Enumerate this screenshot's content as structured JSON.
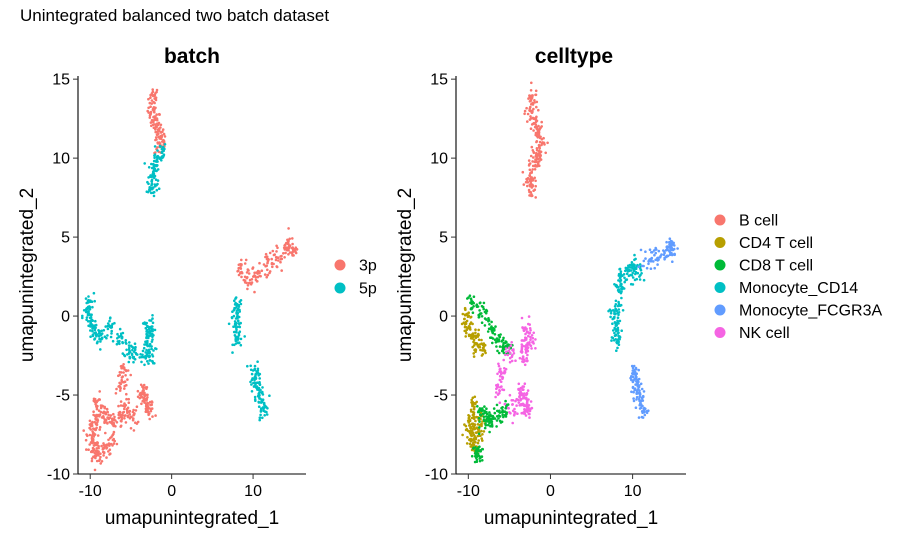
{
  "main_title": "Unintegrated balanced two batch dataset",
  "chart_data": [
    {
      "type": "scatter",
      "title": "batch",
      "xlabel": "umapunintegrated_1",
      "ylabel": "umapunintegrated_2",
      "xlim": [
        -11.5,
        16.5
      ],
      "ylim": [
        -10,
        15.2
      ],
      "xticks": [
        -10,
        0,
        10
      ],
      "yticks": [
        -10,
        -5,
        0,
        5,
        10,
        15
      ],
      "grid": false,
      "legend_position": "right",
      "groups": [
        {
          "name": "3p",
          "color": "#F8766D"
        },
        {
          "name": "5p",
          "color": "#00BFC4"
        }
      ],
      "clusters": [
        {
          "group": "3p",
          "points": [
            [
              -2.2,
              13.9
            ],
            [
              -2.3,
              13.0
            ],
            [
              -2.0,
              12.3
            ],
            [
              -1.6,
              11.7
            ],
            [
              -1.3,
              11.1
            ],
            [
              -1.5,
              10.8
            ]
          ]
        },
        {
          "group": "5p",
          "points": [
            [
              -1.3,
              10.4
            ],
            [
              -1.8,
              9.9
            ],
            [
              -2.2,
              9.3
            ],
            [
              -2.4,
              8.7
            ],
            [
              -2.4,
              8.1
            ]
          ]
        },
        {
          "group": "3p",
          "points": [
            [
              8.5,
              3.0
            ],
            [
              9.5,
              2.4
            ],
            [
              10.5,
              2.6
            ],
            [
              11.8,
              3.3
            ],
            [
              12.8,
              3.7
            ],
            [
              14.0,
              4.0
            ],
            [
              15.0,
              4.2
            ],
            [
              14.5,
              4.5
            ]
          ]
        },
        {
          "group": "5p",
          "points": [
            [
              8.0,
              0.5
            ],
            [
              7.9,
              -0.2
            ],
            [
              8.0,
              -0.9
            ],
            [
              8.2,
              -1.5
            ]
          ]
        },
        {
          "group": "5p",
          "points": [
            [
              10.2,
              -3.5
            ],
            [
              10.4,
              -4.1
            ],
            [
              10.7,
              -4.7
            ],
            [
              11.0,
              -5.3
            ],
            [
              11.2,
              -5.9
            ]
          ]
        },
        {
          "group": "5p",
          "points": [
            [
              -10.2,
              0.8
            ],
            [
              -10.3,
              0.0
            ],
            [
              -9.9,
              -0.6
            ],
            [
              -9.4,
              -1.0
            ],
            [
              -8.7,
              -1.2
            ],
            [
              -7.5,
              -0.7
            ],
            [
              -6.5,
              -1.4
            ],
            [
              -5.2,
              -2.0
            ],
            [
              -4.8,
              -2.3
            ],
            [
              -3.0,
              -1.6
            ],
            [
              -2.8,
              -1.0
            ],
            [
              -2.6,
              -2.4
            ],
            [
              -3.3,
              -2.6
            ],
            [
              -2.8,
              -0.6
            ]
          ]
        },
        {
          "group": "3p",
          "points": [
            [
              -3.5,
              -5.2
            ],
            [
              -3.0,
              -5.6
            ],
            [
              -2.7,
              -6.0
            ],
            [
              -3.4,
              -4.7
            ],
            [
              -4.8,
              -6.4
            ],
            [
              -5.6,
              -5.8
            ],
            [
              -6.3,
              -6.4
            ],
            [
              -7.2,
              -6.7
            ],
            [
              -8.0,
              -6.4
            ],
            [
              -8.6,
              -6.2
            ],
            [
              -9.2,
              -6.7
            ],
            [
              -9.6,
              -7.3
            ],
            [
              -9.8,
              -7.9
            ],
            [
              -9.5,
              -8.5
            ],
            [
              -9.0,
              -8.8
            ],
            [
              -8.2,
              -8.5
            ],
            [
              -7.6,
              -8.0
            ],
            [
              -6.2,
              -4.5
            ],
            [
              -5.9,
              -3.5
            ],
            [
              -9.2,
              -5.6
            ]
          ]
        }
      ]
    },
    {
      "type": "scatter",
      "title": "celltype",
      "xlabel": "umapunintegrated_1",
      "ylabel": "umapunintegrated_2",
      "xlim": [
        -11.5,
        16.5
      ],
      "ylim": [
        -10,
        15.2
      ],
      "xticks": [
        -10,
        0,
        10
      ],
      "yticks": [
        -10,
        -5,
        0,
        5,
        10,
        15
      ],
      "grid": false,
      "legend_position": "right",
      "groups": [
        {
          "name": "B cell",
          "color": "#F8766D"
        },
        {
          "name": "CD4 T cell",
          "color": "#B79F00"
        },
        {
          "name": "CD8 T cell",
          "color": "#00BA38"
        },
        {
          "name": "Monocyte_CD14",
          "color": "#00BFC4"
        },
        {
          "name": "Monocyte_FCGR3A",
          "color": "#619CFF"
        },
        {
          "name": "NK cell",
          "color": "#F564E3"
        }
      ],
      "clusters": [
        {
          "group": "B cell",
          "points": [
            [
              -2.2,
              13.9
            ],
            [
              -2.3,
              13.0
            ],
            [
              -2.0,
              12.3
            ],
            [
              -1.6,
              11.7
            ],
            [
              -1.3,
              11.1
            ],
            [
              -1.3,
              10.4
            ],
            [
              -1.8,
              9.9
            ],
            [
              -2.2,
              9.3
            ],
            [
              -2.4,
              8.7
            ],
            [
              -2.4,
              8.1
            ]
          ]
        },
        {
          "group": "Monocyte_CD14",
          "points": [
            [
              8.5,
              1.9
            ],
            [
              8.6,
              2.5
            ],
            [
              9.3,
              2.7
            ],
            [
              10.0,
              3.2
            ],
            [
              10.5,
              2.6
            ],
            [
              8.0,
              0.5
            ],
            [
              7.9,
              -0.2
            ],
            [
              8.0,
              -0.9
            ],
            [
              8.2,
              -1.5
            ]
          ]
        },
        {
          "group": "Monocyte_FCGR3A",
          "points": [
            [
              11.8,
              3.6
            ],
            [
              12.8,
              3.8
            ],
            [
              14.0,
              4.0
            ],
            [
              15.0,
              4.2
            ],
            [
              14.5,
              4.5
            ],
            [
              10.2,
              -3.5
            ],
            [
              10.4,
              -4.1
            ],
            [
              10.7,
              -4.7
            ],
            [
              11.0,
              -5.3
            ],
            [
              11.2,
              -5.9
            ]
          ]
        },
        {
          "group": "CD4 T cell",
          "points": [
            [
              -10.2,
              0.0
            ],
            [
              -10.0,
              -0.6
            ],
            [
              -9.5,
              -1.2
            ],
            [
              -9.1,
              -1.7
            ],
            [
              -8.4,
              -2.0
            ],
            [
              -9.4,
              -5.6
            ],
            [
              -9.7,
              -6.4
            ],
            [
              -9.8,
              -7.1
            ],
            [
              -9.5,
              -7.7
            ],
            [
              -9.2,
              -8.2
            ],
            [
              -8.7,
              -7.4
            ],
            [
              -8.5,
              -6.6
            ]
          ]
        },
        {
          "group": "CD8 T cell",
          "points": [
            [
              -9.6,
              0.8
            ],
            [
              -8.4,
              0.3
            ],
            [
              -7.5,
              -0.7
            ],
            [
              -6.5,
              -1.4
            ],
            [
              -5.8,
              -1.9
            ],
            [
              -5.2,
              -2.0
            ],
            [
              -8.6,
              -6.1
            ],
            [
              -8.0,
              -6.4
            ],
            [
              -7.3,
              -6.6
            ],
            [
              -6.3,
              -6.3
            ],
            [
              -5.6,
              -6.0
            ],
            [
              -8.8,
              -8.6
            ],
            [
              -9.0,
              -8.9
            ]
          ]
        },
        {
          "group": "NK cell",
          "points": [
            [
              -2.8,
              -0.8
            ],
            [
              -2.6,
              -1.5
            ],
            [
              -3.0,
              -1.9
            ],
            [
              -3.3,
              -2.6
            ],
            [
              -4.8,
              -2.3
            ],
            [
              -5.9,
              -3.5
            ],
            [
              -6.2,
              -4.5
            ],
            [
              -3.5,
              -5.2
            ],
            [
              -3.0,
              -5.6
            ],
            [
              -2.7,
              -6.0
            ],
            [
              -3.4,
              -4.7
            ],
            [
              -4.8,
              -5.8
            ]
          ]
        }
      ]
    }
  ]
}
